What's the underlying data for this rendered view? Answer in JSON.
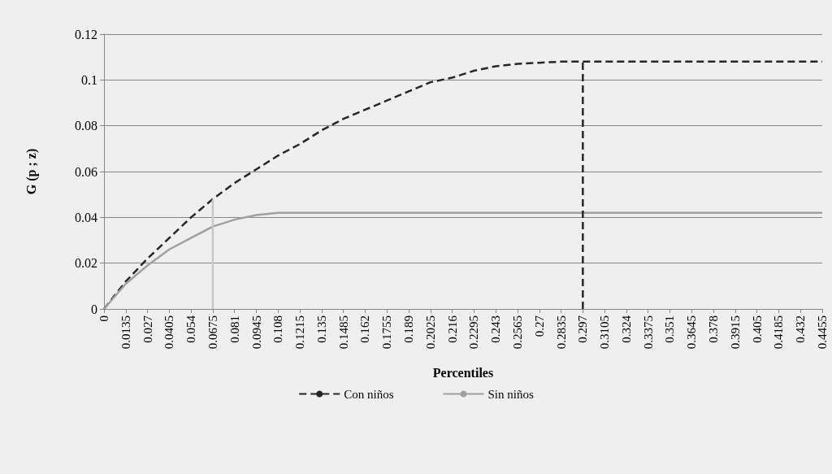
{
  "chart_data": {
    "type": "line",
    "xlabel": "Percentiles",
    "ylabel": "G (p ; z)",
    "xlim": [
      0,
      0.4455
    ],
    "xticks": [
      0,
      0.0135,
      0.027,
      0.0405,
      0.054,
      0.0675,
      0.081,
      0.0945,
      0.108,
      0.1215,
      0.135,
      0.1485,
      0.162,
      0.1755,
      0.189,
      0.2025,
      0.216,
      0.2295,
      0.243,
      0.2565,
      0.27,
      0.2835,
      0.297,
      0.3105,
      0.324,
      0.3375,
      0.351,
      0.3645,
      0.378,
      0.3915,
      0.405,
      0.4185,
      0.432,
      0.4455
    ],
    "ylim": [
      0,
      0.12
    ],
    "yticks": [
      0,
      0.02,
      0.04,
      0.06,
      0.08,
      0.1,
      0.12
    ],
    "grid": "y",
    "legend": "bottom",
    "marker": "none",
    "series": [
      {
        "name": "Con niños",
        "color": "#262626",
        "line_style": "dashed",
        "x": [
          0,
          0.0135,
          0.027,
          0.0405,
          0.054,
          0.0675,
          0.081,
          0.0945,
          0.108,
          0.1215,
          0.135,
          0.1485,
          0.162,
          0.1755,
          0.189,
          0.2025,
          0.216,
          0.2295,
          0.243,
          0.2565,
          0.27,
          0.2835,
          0.297,
          0.4455
        ],
        "values": [
          0,
          0.012,
          0.022,
          0.031,
          0.04,
          0.048,
          0.055,
          0.061,
          0.067,
          0.072,
          0.078,
          0.083,
          0.087,
          0.091,
          0.095,
          0.099,
          0.101,
          0.104,
          0.106,
          0.107,
          0.1075,
          0.108,
          0.108,
          0.108
        ]
      },
      {
        "name": "Sin niños",
        "color": "#a0a0a0",
        "line_style": "solid",
        "x": [
          0,
          0.0135,
          0.027,
          0.0405,
          0.054,
          0.0675,
          0.081,
          0.0945,
          0.108,
          0.4455
        ],
        "values": [
          0,
          0.011,
          0.019,
          0.026,
          0.031,
          0.036,
          0.039,
          0.041,
          0.042,
          0.042
        ]
      },
      {
        "color": "#262626",
        "line_style": "dashed",
        "x": [
          0.297,
          0.297
        ],
        "values": [
          0,
          0.108
        ]
      },
      {
        "color": "#c8c8c8",
        "line_style": "solid",
        "x": [
          0.0675,
          0.0675
        ],
        "values": [
          0,
          0.048
        ]
      }
    ]
  }
}
